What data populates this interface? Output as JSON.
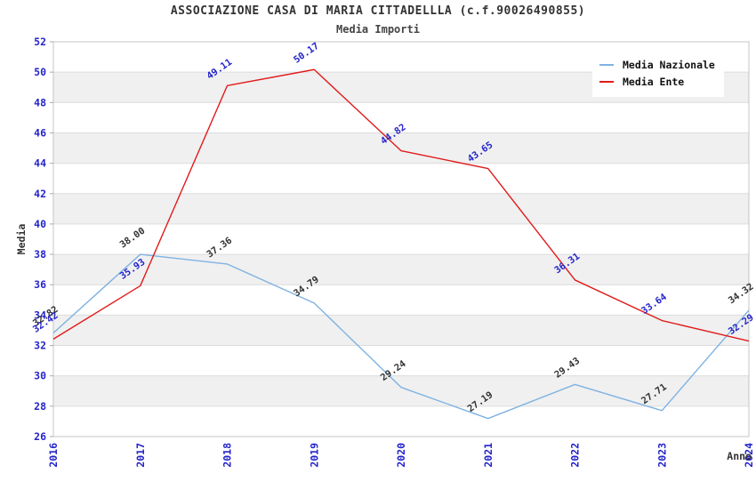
{
  "chart_data": {
    "type": "line",
    "title": "ASSOCIAZIONE CASA DI MARIA CITTADELLLA (c.f.90026490855)",
    "subtitle": "Media Importi",
    "xlabel": "Anno",
    "ylabel": "Media",
    "x": [
      "2016",
      "2017",
      "2018",
      "2019",
      "2020",
      "2021",
      "2022",
      "2023",
      "2024"
    ],
    "series": [
      {
        "name": "Media Nazionale",
        "color": "#7fb2e2",
        "label_color": "#333333",
        "values": [
          32.82,
          38.0,
          37.36,
          34.79,
          29.24,
          27.19,
          29.43,
          27.71,
          34.32
        ]
      },
      {
        "name": "Media Ente",
        "color": "#e11b1b",
        "label_color": "#2424cc",
        "values": [
          32.42,
          35.93,
          49.11,
          50.17,
          44.82,
          43.65,
          36.31,
          33.64,
          32.29
        ]
      }
    ],
    "ylim": [
      26,
      52
    ],
    "ytick_step": 2,
    "tick_label_color": "#2424cc",
    "axis_title_color": "#333333",
    "band_color": "#f0f0f0",
    "grid_color": "#dcdcdc",
    "frame_color": "#c4c4c4",
    "legend_position": "top-right",
    "grid": "horizontal-bands"
  }
}
